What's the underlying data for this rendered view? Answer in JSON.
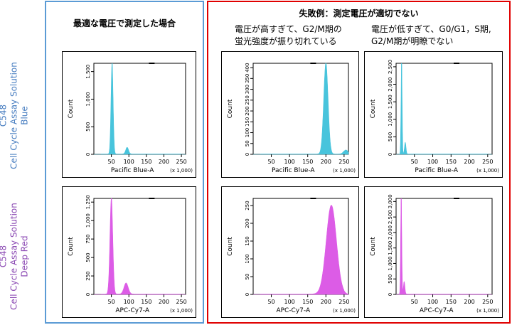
{
  "headers": {
    "optimal": "最適な電圧で測定した場合",
    "failure": "失敗例：測定電圧が適切でない",
    "high_voltage": [
      "電圧が高すぎて、G2/M期の",
      "蛍光強度が振り切れている"
    ],
    "low_voltage": [
      "電圧が低すぎて、G0/G1，S期,",
      "G2/M期が明瞭でない"
    ]
  },
  "row_labels": {
    "blue": [
      "C548",
      "Cell Cycle Assay Solution",
      "Blue"
    ],
    "deep_red": [
      "C548",
      "Cell Cycle Assay Solution",
      "Deep Red"
    ]
  },
  "colors": {
    "blue_frame": "#5b9bd5",
    "red_frame": "#e00000",
    "cyan_fill": "#48c4dc",
    "magenta_fill": "#dc5ce6",
    "blue_text": "#4a7fc1",
    "purple_text": "#8c4bb4"
  },
  "chart_data": [
    {
      "id": "blue-optimal",
      "type": "area",
      "color": "#48c4dc",
      "ylabel": "Count",
      "xlabel": "Pacific Blue-A",
      "xmultiplier": "(x 1,000)",
      "xlim": [
        0,
        262
      ],
      "ylim": [
        0,
        1650
      ],
      "xticks": [
        "50",
        "100",
        "150",
        "200",
        "250"
      ],
      "yticks": [
        "0",
        "500",
        "1,000",
        "1,500"
      ],
      "peaks": [
        {
          "x": 52,
          "h": 1650,
          "w": 3
        },
        {
          "x": 95,
          "h": 120,
          "w": 4
        }
      ]
    },
    {
      "id": "blue-high",
      "type": "area",
      "color": "#48c4dc",
      "ylabel": "Count",
      "xlabel": "Pacific Blue-A",
      "xmultiplier": "(x 1,000)",
      "xlim": [
        0,
        262
      ],
      "ylim": [
        0,
        420
      ],
      "xticks": [
        "50",
        "100",
        "150",
        "200",
        "250"
      ],
      "yticks": [
        "0",
        "50",
        "100",
        "150",
        "200",
        "250",
        "300",
        "350",
        "400"
      ],
      "peaks": [
        {
          "x": 200,
          "h": 420,
          "w": 6
        },
        {
          "x": 255,
          "h": 20,
          "w": 6
        }
      ]
    },
    {
      "id": "blue-low",
      "type": "area",
      "color": "#48c4dc",
      "ylabel": "Count",
      "xlabel": "Pacific Blue-A",
      "xmultiplier": "(x 1,000)",
      "xlim": [
        0,
        262
      ],
      "ylim": [
        0,
        2600
      ],
      "xticks": [
        "50",
        "100",
        "150",
        "200",
        "250"
      ],
      "yticks": [
        "0",
        "500",
        "1,000",
        "1,500",
        "2,000",
        "2,500"
      ],
      "peaks": [
        {
          "x": 15,
          "h": 2600,
          "w": 1.5
        },
        {
          "x": 25,
          "h": 330,
          "w": 2
        }
      ]
    },
    {
      "id": "red-optimal",
      "type": "area",
      "color": "#dc5ce6",
      "ylabel": "Count",
      "xlabel": "APC-Cy7-A",
      "xmultiplier": "(x 1,000)",
      "xlim": [
        0,
        262
      ],
      "ylim": [
        0,
        1300
      ],
      "xticks": [
        "50",
        "100",
        "150",
        "200",
        "250"
      ],
      "yticks": [
        "0",
        "250",
        "500",
        "750",
        "1,000",
        "1,250"
      ],
      "peaks": [
        {
          "x": 50,
          "h": 1300,
          "w": 4
        },
        {
          "x": 92,
          "h": 150,
          "w": 6
        }
      ]
    },
    {
      "id": "red-high",
      "type": "area",
      "color": "#dc5ce6",
      "ylabel": "Count",
      "xlabel": "APC-Cy7-A",
      "xmultiplier": "(x 1,000)",
      "xlim": [
        0,
        262
      ],
      "ylim": [
        0,
        270
      ],
      "xticks": [
        "50",
        "100",
        "150",
        "200",
        "250"
      ],
      "yticks": [
        "0",
        "50",
        "100",
        "150",
        "200",
        "250"
      ],
      "peaks": [
        {
          "x": 215,
          "h": 250,
          "w": 14
        }
      ]
    },
    {
      "id": "red-low",
      "type": "area",
      "color": "#dc5ce6",
      "ylabel": "Count",
      "xlabel": "APC-Cy7-A",
      "xmultiplier": "(x 1,000)",
      "xlim": [
        0,
        262
      ],
      "ylim": [
        0,
        3100
      ],
      "xticks": [
        "50",
        "100",
        "150",
        "200",
        "250"
      ],
      "yticks": [
        "0",
        "500",
        "1,000",
        "1,500",
        "2,000",
        "2,500",
        "3,000"
      ],
      "peaks": [
        {
          "x": 14,
          "h": 3100,
          "w": 1.5
        },
        {
          "x": 22,
          "h": 400,
          "w": 2
        }
      ]
    }
  ]
}
